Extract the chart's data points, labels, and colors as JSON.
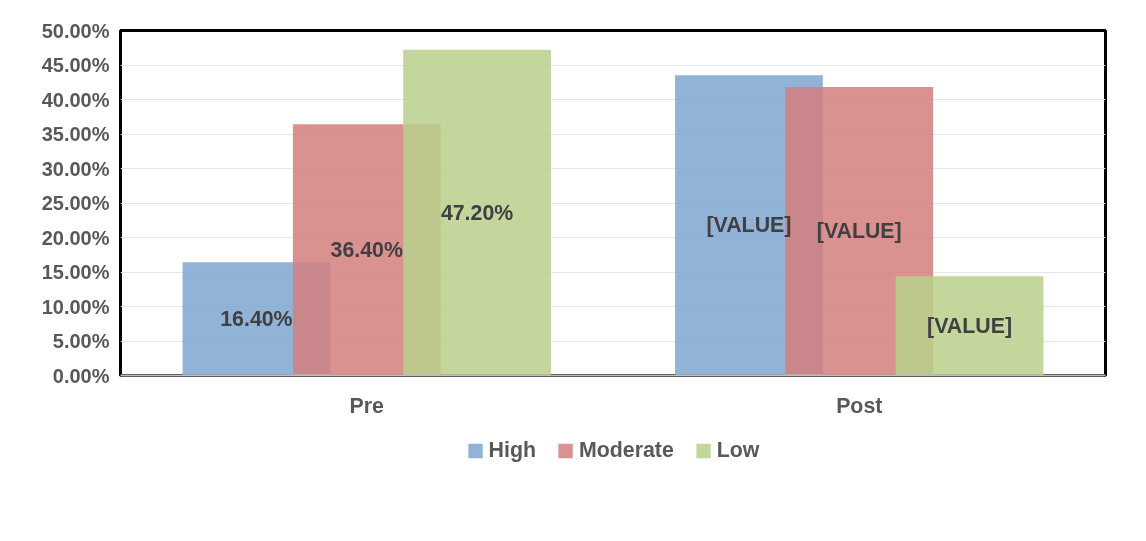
{
  "chart_data": {
    "type": "bar",
    "categories": [
      "Pre",
      "Post"
    ],
    "series": [
      {
        "name": "High",
        "color": "#7fa6d1",
        "values": [
          16.4,
          43.5
        ],
        "value_labels": [
          "16.40%",
          "[VALUE]"
        ]
      },
      {
        "name": "Moderate",
        "color": "#d47f7e",
        "values": [
          36.4,
          41.8
        ],
        "value_labels": [
          "36.40%",
          "[VALUE]"
        ]
      },
      {
        "name": "Low",
        "color": "#b8d08b",
        "values": [
          47.2,
          14.4
        ],
        "value_labels": [
          "47.20%",
          "[VALUE]"
        ]
      }
    ],
    "ylim": [
      0,
      50
    ],
    "yticks": [
      {
        "value": 0,
        "label": "0.00%"
      },
      {
        "value": 5,
        "label": "5.00%"
      },
      {
        "value": 10,
        "label": "10.00%"
      },
      {
        "value": 15,
        "label": "15.00%"
      },
      {
        "value": 20,
        "label": "20.00%"
      },
      {
        "value": 25,
        "label": "25.00%"
      },
      {
        "value": 30,
        "label": "30.00%"
      },
      {
        "value": 35,
        "label": "35.00%"
      },
      {
        "value": 40,
        "label": "40.00%"
      },
      {
        "value": 45,
        "label": "45.00%"
      },
      {
        "value": 50,
        "label": "50.00%"
      }
    ],
    "grid": "y",
    "legend": "bottom"
  }
}
